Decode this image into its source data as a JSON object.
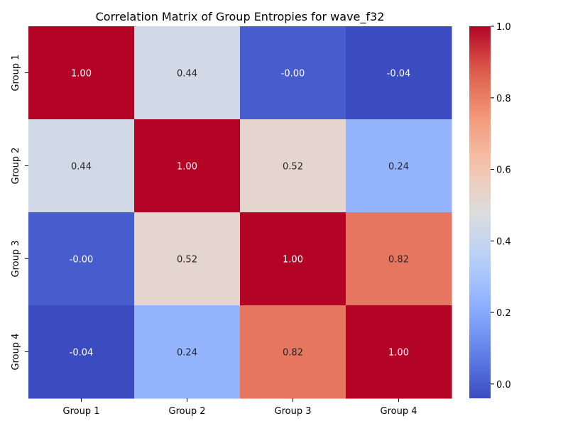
{
  "chart_data": {
    "type": "heatmap",
    "title": "Correlation Matrix of Group Entropies for wave_f32",
    "xlabel": "",
    "ylabel": "",
    "x_labels": [
      "Group 1",
      "Group 2",
      "Group 3",
      "Group 4"
    ],
    "y_labels": [
      "Group 1",
      "Group 2",
      "Group 3",
      "Group 4"
    ],
    "values": [
      [
        1.0,
        0.44,
        -0.0,
        -0.04
      ],
      [
        0.44,
        1.0,
        0.52,
        0.24
      ],
      [
        -0.0,
        0.52,
        1.0,
        0.82
      ],
      [
        -0.04,
        0.24,
        0.82,
        1.0
      ]
    ],
    "value_labels": [
      [
        "1.00",
        "0.44",
        "-0.00",
        "-0.04"
      ],
      [
        "0.44",
        "1.00",
        "0.52",
        "0.24"
      ],
      [
        "-0.00",
        "0.52",
        "1.00",
        "0.82"
      ],
      [
        "-0.04",
        "0.24",
        "0.82",
        "1.00"
      ]
    ],
    "colormap": "coolwarm",
    "vmin": -0.04,
    "vmax": 1.0,
    "colorbar": {
      "ticks": [
        0.0,
        0.2,
        0.4,
        0.6,
        0.8,
        1.0
      ],
      "tick_labels": [
        "0.0",
        "0.2",
        "0.4",
        "0.6",
        "0.8",
        "1.0"
      ]
    },
    "grid": false,
    "legend": "colorbar-right"
  }
}
